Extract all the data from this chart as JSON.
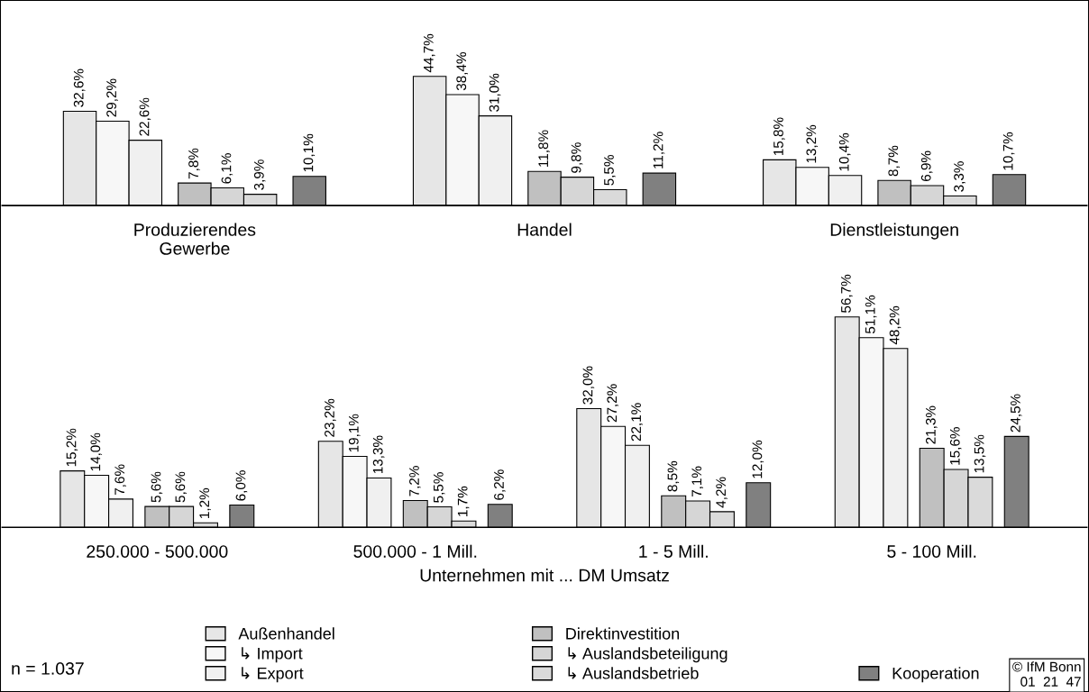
{
  "chart_data": [
    {
      "type": "bar",
      "categories": [
        "Produzierendes\nGewerbe",
        "Handel",
        "Dienstleistungen"
      ],
      "data_labels": true,
      "series": [
        {
          "color": "#e6e6e6",
          "values": [
            32.6,
            44.7,
            15.8
          ],
          "value_labels": [
            "32,6%",
            "44,7%",
            "15,8%"
          ]
        },
        {
          "color": "#f7f7f7",
          "values": [
            29.2,
            38.4,
            13.2
          ],
          "value_labels": [
            "29,2%",
            "38,4%",
            "13,2%"
          ]
        },
        {
          "color": "#f0f0f0",
          "values": [
            22.6,
            31.0,
            10.4
          ],
          "value_labels": [
            "22,6%",
            "31,0%",
            "10,4%"
          ]
        },
        {
          "color": "#c0c0c0",
          "values": [
            7.8,
            11.8,
            8.7
          ],
          "value_labels": [
            "7,8%",
            "11,8%",
            "8,7%"
          ]
        },
        {
          "color": "#d6d6d6",
          "values": [
            6.1,
            9.8,
            6.9
          ],
          "value_labels": [
            "6,1%",
            "9,8%",
            "6,9%"
          ]
        },
        {
          "color": "#dadada",
          "values": [
            3.9,
            5.5,
            3.3
          ],
          "value_labels": [
            "3,9%",
            "5,5%",
            "3,3%"
          ]
        },
        {
          "color": "#808080",
          "values": [
            10.1,
            11.2,
            10.7
          ],
          "value_labels": [
            "10,1%",
            "11,2%",
            "10,7%"
          ]
        }
      ]
    },
    {
      "type": "bar",
      "categories": [
        "250.000 - 500.000",
        "500.000 - 1 Mill.",
        "1 - 5 Mill.",
        "5 - 100 Mill."
      ],
      "data_labels": true,
      "xlabel": "Unternehmen mit ... DM Umsatz",
      "legend": "bottom",
      "annotations": [
        "n = 1.037",
        "© IfM Bonn\n01  21  47"
      ],
      "series": [
        {
          "name": "Außenhandel",
          "color": "#e6e6e6",
          "values": [
            15.2,
            23.2,
            32.0,
            56.7
          ],
          "value_labels": [
            "15,2%",
            "23,2%",
            "32,0%",
            "56,7%"
          ]
        },
        {
          "name": "↳ Import",
          "color": "#f7f7f7",
          "values": [
            14.0,
            19.1,
            27.2,
            51.1
          ],
          "value_labels": [
            "14,0%",
            "19,1%",
            "27,2%",
            "51,1%"
          ]
        },
        {
          "name": "↳ Export",
          "color": "#f0f0f0",
          "values": [
            7.6,
            13.3,
            22.1,
            48.2
          ],
          "value_labels": [
            "7,6%",
            "13,3%",
            "22,1%",
            "48,2%"
          ]
        },
        {
          "name": "Direktinvestition",
          "color": "#c0c0c0",
          "values": [
            5.6,
            7.2,
            8.5,
            21.3
          ],
          "value_labels": [
            "5,6%",
            "7,2%",
            "8,5%",
            "21,3%"
          ]
        },
        {
          "name": "↳ Auslandsbeteiligung",
          "color": "#d6d6d6",
          "values": [
            5.6,
            5.5,
            7.1,
            15.6
          ],
          "value_labels": [
            "5,6%",
            "5,5%",
            "7,1%",
            "15,6%"
          ]
        },
        {
          "name": "↳ Auslandsbetrieb",
          "color": "#dadada",
          "values": [
            1.2,
            1.7,
            4.2,
            13.5
          ],
          "value_labels": [
            "1,2%",
            "1,7%",
            "4,2%",
            "13,5%"
          ]
        },
        {
          "name": "Kooperation",
          "color": "#808080",
          "values": [
            6.0,
            6.2,
            12.0,
            24.5
          ],
          "value_labels": [
            "6,0%",
            "6,2%",
            "12,0%",
            "24,5%"
          ]
        }
      ]
    }
  ]
}
